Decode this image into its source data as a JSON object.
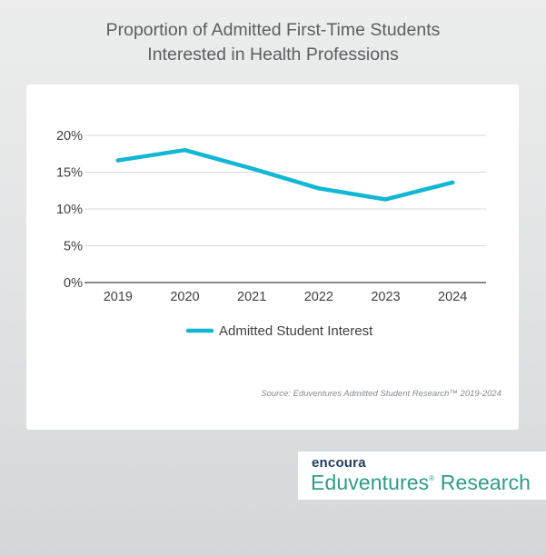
{
  "chart_data": {
    "type": "line",
    "title": [
      "Proportion of Admitted First-Time Students",
      "Interested in Health Professions"
    ],
    "x": [
      "2019",
      "2020",
      "2021",
      "2022",
      "2023",
      "2024"
    ],
    "series": [
      {
        "name": "Admitted Student Interest",
        "values": [
          16.6,
          18.0,
          15.5,
          12.8,
          11.3,
          13.6
        ],
        "color": "#12b7d3"
      }
    ],
    "yticks": [
      "0%",
      "5%",
      "10%",
      "15%",
      "20%"
    ],
    "ylim": [
      0,
      20
    ],
    "grid": true,
    "legend_position": "bottom"
  },
  "source": "Source: Eduventures Admitted Student Research™ 2019-2024",
  "logo": {
    "top": "encoura",
    "brand": "Eduventures",
    "mark": "®",
    "suffix": "Research"
  },
  "colors": {
    "line": "#12b7d3",
    "grid": "#d9d9d9",
    "axis": "#404040",
    "brand_green": "#2e9c86",
    "brand_navy": "#1f3d5a"
  }
}
